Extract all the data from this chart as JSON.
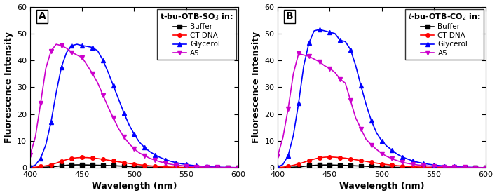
{
  "panel_A": {
    "label": "A",
    "wavelengths": [
      400,
      405,
      410,
      415,
      420,
      425,
      430,
      435,
      440,
      445,
      450,
      455,
      460,
      465,
      470,
      475,
      480,
      485,
      490,
      495,
      500,
      505,
      510,
      515,
      520,
      525,
      530,
      535,
      540,
      545,
      550,
      555,
      560,
      565,
      570,
      575,
      580,
      585,
      590,
      595,
      600
    ],
    "buffer": [
      0.05,
      0.05,
      0.1,
      0.2,
      0.3,
      0.5,
      0.7,
      0.9,
      1.0,
      1.05,
      1.05,
      1.0,
      0.95,
      0.9,
      0.85,
      0.8,
      0.75,
      0.65,
      0.55,
      0.45,
      0.35,
      0.25,
      0.2,
      0.15,
      0.1,
      0.1,
      0.05,
      0.05,
      0.05,
      0.05,
      0.05,
      0.0,
      0.0,
      0.0,
      0.0,
      0.0,
      0.0,
      0.0,
      0.0,
      0.0,
      0.0
    ],
    "ct_dna": [
      0.1,
      0.2,
      0.4,
      0.7,
      1.1,
      1.7,
      2.4,
      3.0,
      3.5,
      3.7,
      3.8,
      3.75,
      3.6,
      3.4,
      3.1,
      2.8,
      2.5,
      2.2,
      1.9,
      1.6,
      1.3,
      1.1,
      0.9,
      0.7,
      0.55,
      0.4,
      0.3,
      0.25,
      0.18,
      0.14,
      0.1,
      0.08,
      0.06,
      0.05,
      0.04,
      0.03,
      0.02,
      0.02,
      0.01,
      0.01,
      0.0
    ],
    "glycerol": [
      0.2,
      1.0,
      3.5,
      8.5,
      17.0,
      28.0,
      37.5,
      43.0,
      45.5,
      46.0,
      45.5,
      45.2,
      44.8,
      43.5,
      40.0,
      35.5,
      30.5,
      25.5,
      20.5,
      16.0,
      12.5,
      9.5,
      7.5,
      6.0,
      4.8,
      3.8,
      3.0,
      2.4,
      1.9,
      1.5,
      1.2,
      0.9,
      0.7,
      0.55,
      0.4,
      0.3,
      0.2,
      0.15,
      0.1,
      0.08,
      0.05
    ],
    "a5": [
      4.8,
      11.5,
      24.0,
      37.0,
      43.5,
      46.0,
      45.5,
      44.5,
      43.0,
      42.0,
      41.0,
      38.0,
      35.0,
      31.5,
      27.0,
      22.5,
      18.5,
      14.5,
      11.5,
      9.0,
      7.0,
      5.5,
      4.5,
      3.5,
      2.8,
      2.2,
      1.7,
      1.3,
      1.0,
      0.8,
      0.6,
      0.45,
      0.35,
      0.28,
      0.22,
      0.18,
      0.15,
      0.12,
      0.1,
      0.08,
      0.05
    ],
    "ylabel": "Fluorescence Intensity",
    "xlabel": "Wavelength (nm)",
    "ylim": [
      0,
      60
    ],
    "xlim": [
      400,
      600
    ]
  },
  "panel_B": {
    "label": "B",
    "wavelengths": [
      400,
      405,
      410,
      415,
      420,
      425,
      430,
      435,
      440,
      445,
      450,
      455,
      460,
      465,
      470,
      475,
      480,
      485,
      490,
      495,
      500,
      505,
      510,
      515,
      520,
      525,
      530,
      535,
      540,
      545,
      550,
      555,
      560,
      565,
      570,
      575,
      580,
      585,
      590,
      595,
      600
    ],
    "buffer": [
      0.05,
      0.05,
      0.1,
      0.2,
      0.3,
      0.5,
      0.7,
      0.85,
      0.95,
      1.0,
      1.0,
      0.95,
      0.9,
      0.85,
      0.78,
      0.7,
      0.62,
      0.54,
      0.44,
      0.35,
      0.28,
      0.22,
      0.16,
      0.12,
      0.09,
      0.07,
      0.05,
      0.04,
      0.03,
      0.02,
      0.02,
      0.01,
      0.01,
      0.0,
      0.0,
      0.0,
      0.0,
      0.0,
      0.0,
      0.0,
      0.0
    ],
    "ct_dna": [
      0.1,
      0.2,
      0.5,
      0.9,
      1.4,
      2.0,
      2.7,
      3.2,
      3.7,
      3.9,
      4.0,
      3.9,
      3.75,
      3.55,
      3.25,
      2.95,
      2.65,
      2.35,
      2.0,
      1.7,
      1.4,
      1.15,
      0.95,
      0.75,
      0.6,
      0.45,
      0.35,
      0.27,
      0.2,
      0.15,
      0.12,
      0.09,
      0.07,
      0.05,
      0.04,
      0.03,
      0.02,
      0.01,
      0.01,
      0.0,
      0.0
    ],
    "glycerol": [
      0.2,
      1.2,
      4.5,
      12.0,
      24.0,
      38.0,
      46.5,
      51.0,
      51.5,
      51.0,
      50.5,
      50.0,
      47.5,
      47.0,
      44.0,
      38.0,
      30.5,
      23.5,
      17.5,
      13.0,
      10.0,
      8.0,
      6.5,
      5.0,
      4.0,
      3.2,
      2.5,
      2.0,
      1.6,
      1.3,
      1.0,
      0.8,
      0.65,
      0.5,
      0.4,
      0.3,
      0.22,
      0.16,
      0.1,
      0.07,
      0.04
    ],
    "a5": [
      4.5,
      11.2,
      22.0,
      35.0,
      42.5,
      42.0,
      41.5,
      40.5,
      39.5,
      38.0,
      37.0,
      35.5,
      33.0,
      31.5,
      25.0,
      18.5,
      14.5,
      10.5,
      8.5,
      6.8,
      5.3,
      4.2,
      3.3,
      2.6,
      2.0,
      1.6,
      1.3,
      1.0,
      0.8,
      0.65,
      0.5,
      0.42,
      0.35,
      0.28,
      0.22,
      0.18,
      0.14,
      0.1,
      0.08,
      0.05,
      0.03
    ],
    "ylabel": "Fluorescence Intensity",
    "xlabel": "Wavelength (nm)",
    "ylim": [
      0,
      60
    ],
    "xlim": [
      400,
      600
    ]
  },
  "colors": {
    "buffer": "#000000",
    "ct_dna": "#ff0000",
    "glycerol": "#0000ff",
    "a5": "#cc00cc"
  },
  "legend_labels": [
    "Buffer",
    "CT DNA",
    "Glycerol",
    "A5"
  ],
  "markers": {
    "buffer": "s",
    "ct_dna": "o",
    "glycerol": "^",
    "a5": "v"
  },
  "marker_every": 2,
  "marker_size": 4,
  "line_width": 1.2,
  "xticks": [
    400,
    450,
    500,
    550,
    600
  ],
  "yticks": [
    0,
    10,
    20,
    30,
    40,
    50,
    60
  ]
}
